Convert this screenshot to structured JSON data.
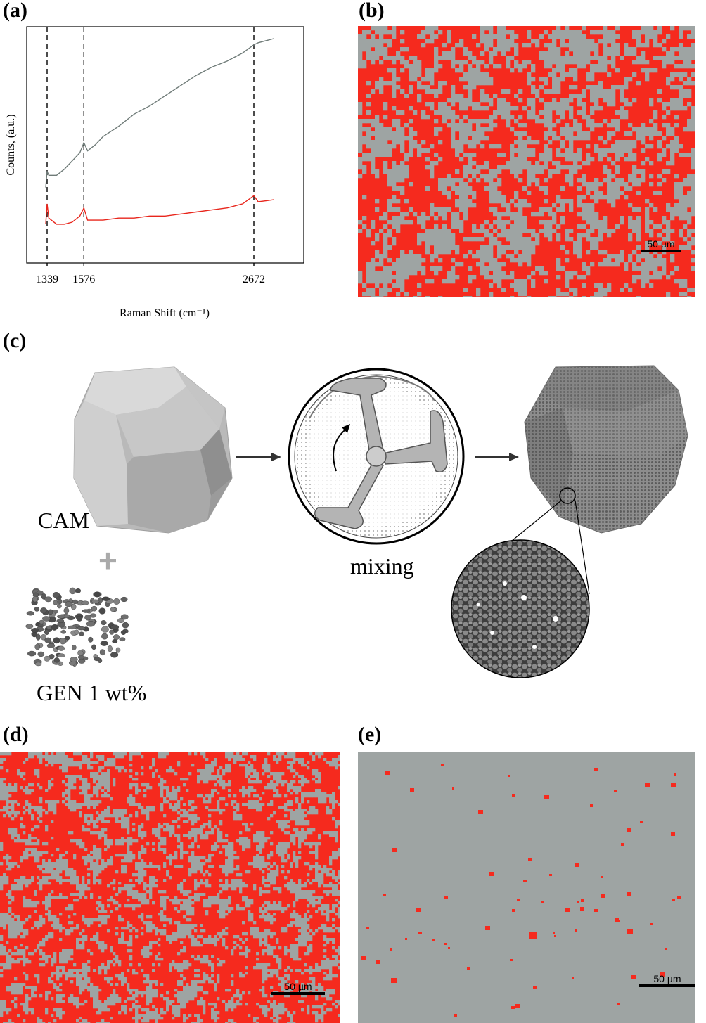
{
  "figure": {
    "panels": {
      "a": {
        "label": "(a)"
      },
      "b": {
        "label": "(b)",
        "scale_bar": "50 µm"
      },
      "c": {
        "label": "(c)",
        "cam_label": "CAM",
        "plus_sign": "+",
        "gen_label": "GEN 1 wt%",
        "mixing_label": "mixing"
      },
      "d": {
        "label": "(d)",
        "scale_bar": "50 µm"
      },
      "e": {
        "label": "(e)",
        "scale_bar": "50 µm"
      }
    },
    "colors": {
      "red": "#f52a1e",
      "gray": "#9ea4a3",
      "top_spectrum": "#6f7b78",
      "bottom_spectrum": "#e8261c"
    }
  },
  "chart_data": {
    "type": "line",
    "xlabel": "Raman Shift (cm⁻¹)",
    "ylabel": "Counts, (a.u.)",
    "x_ticks": [
      "1339",
      "1576",
      "2672"
    ],
    "reference_lines": [
      1339,
      1576,
      2672
    ],
    "xlim": [
      1330,
      2900
    ],
    "ylim": [
      0,
      1
    ],
    "series": [
      {
        "color": "#6f7b78",
        "x": [
          1330,
          1339,
          1350,
          1400,
          1450,
          1500,
          1550,
          1576,
          1600,
          1650,
          1700,
          1800,
          1900,
          2000,
          2100,
          2200,
          2300,
          2400,
          2500,
          2600,
          2672,
          2700,
          2800
        ],
        "y": [
          0.27,
          0.35,
          0.33,
          0.33,
          0.36,
          0.4,
          0.44,
          0.49,
          0.45,
          0.48,
          0.52,
          0.57,
          0.63,
          0.67,
          0.72,
          0.77,
          0.82,
          0.86,
          0.89,
          0.93,
          0.97,
          0.98,
          1.0
        ]
      },
      {
        "color": "#e8261c",
        "x": [
          1330,
          1339,
          1350,
          1400,
          1450,
          1500,
          1550,
          1576,
          1600,
          1650,
          1700,
          1800,
          1900,
          2000,
          2100,
          2200,
          2300,
          2400,
          2500,
          2600,
          2672,
          2700,
          2800
        ],
        "y": [
          0.09,
          0.19,
          0.12,
          0.09,
          0.09,
          0.1,
          0.13,
          0.17,
          0.11,
          0.11,
          0.11,
          0.12,
          0.12,
          0.13,
          0.13,
          0.14,
          0.15,
          0.16,
          0.17,
          0.19,
          0.23,
          0.2,
          0.21
        ]
      }
    ]
  },
  "icons": [
    "arrow-right-icon",
    "mixer-icon",
    "cam-crystal-icon",
    "gen-particles-icon",
    "coated-crystal-icon",
    "zoom-circle-icon"
  ]
}
